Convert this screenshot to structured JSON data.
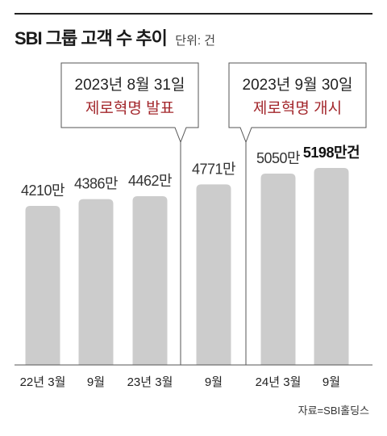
{
  "header": {
    "title": "SBI 그룹 고객 수 추이",
    "unit": "단위: 건"
  },
  "source": "자료=SBI홀딩스",
  "chart_data": {
    "type": "bar",
    "title": "SBI 그룹 고객 수 추이",
    "unit": "단위: 건",
    "categories": [
      "22년 3월",
      "9월",
      "23년 3월",
      "9월",
      "24년 3월",
      "9월"
    ],
    "values": [
      4210,
      4386,
      4462,
      4771,
      5050,
      5198
    ],
    "value_labels": [
      "4210만",
      "4386만",
      "4462만",
      "4771만",
      "5050만",
      "5198만건"
    ],
    "highlight_last": true,
    "bar_color": "#cccccc",
    "accent_color": "#a3272c",
    "grid": false,
    "annotations": [
      {
        "date": "2023년 8월 31일",
        "event": "제로혁명 발표",
        "after_index": 2
      },
      {
        "date": "2023년 9월 30일",
        "event": "제로혁명 개시",
        "after_index": 3
      }
    ]
  }
}
